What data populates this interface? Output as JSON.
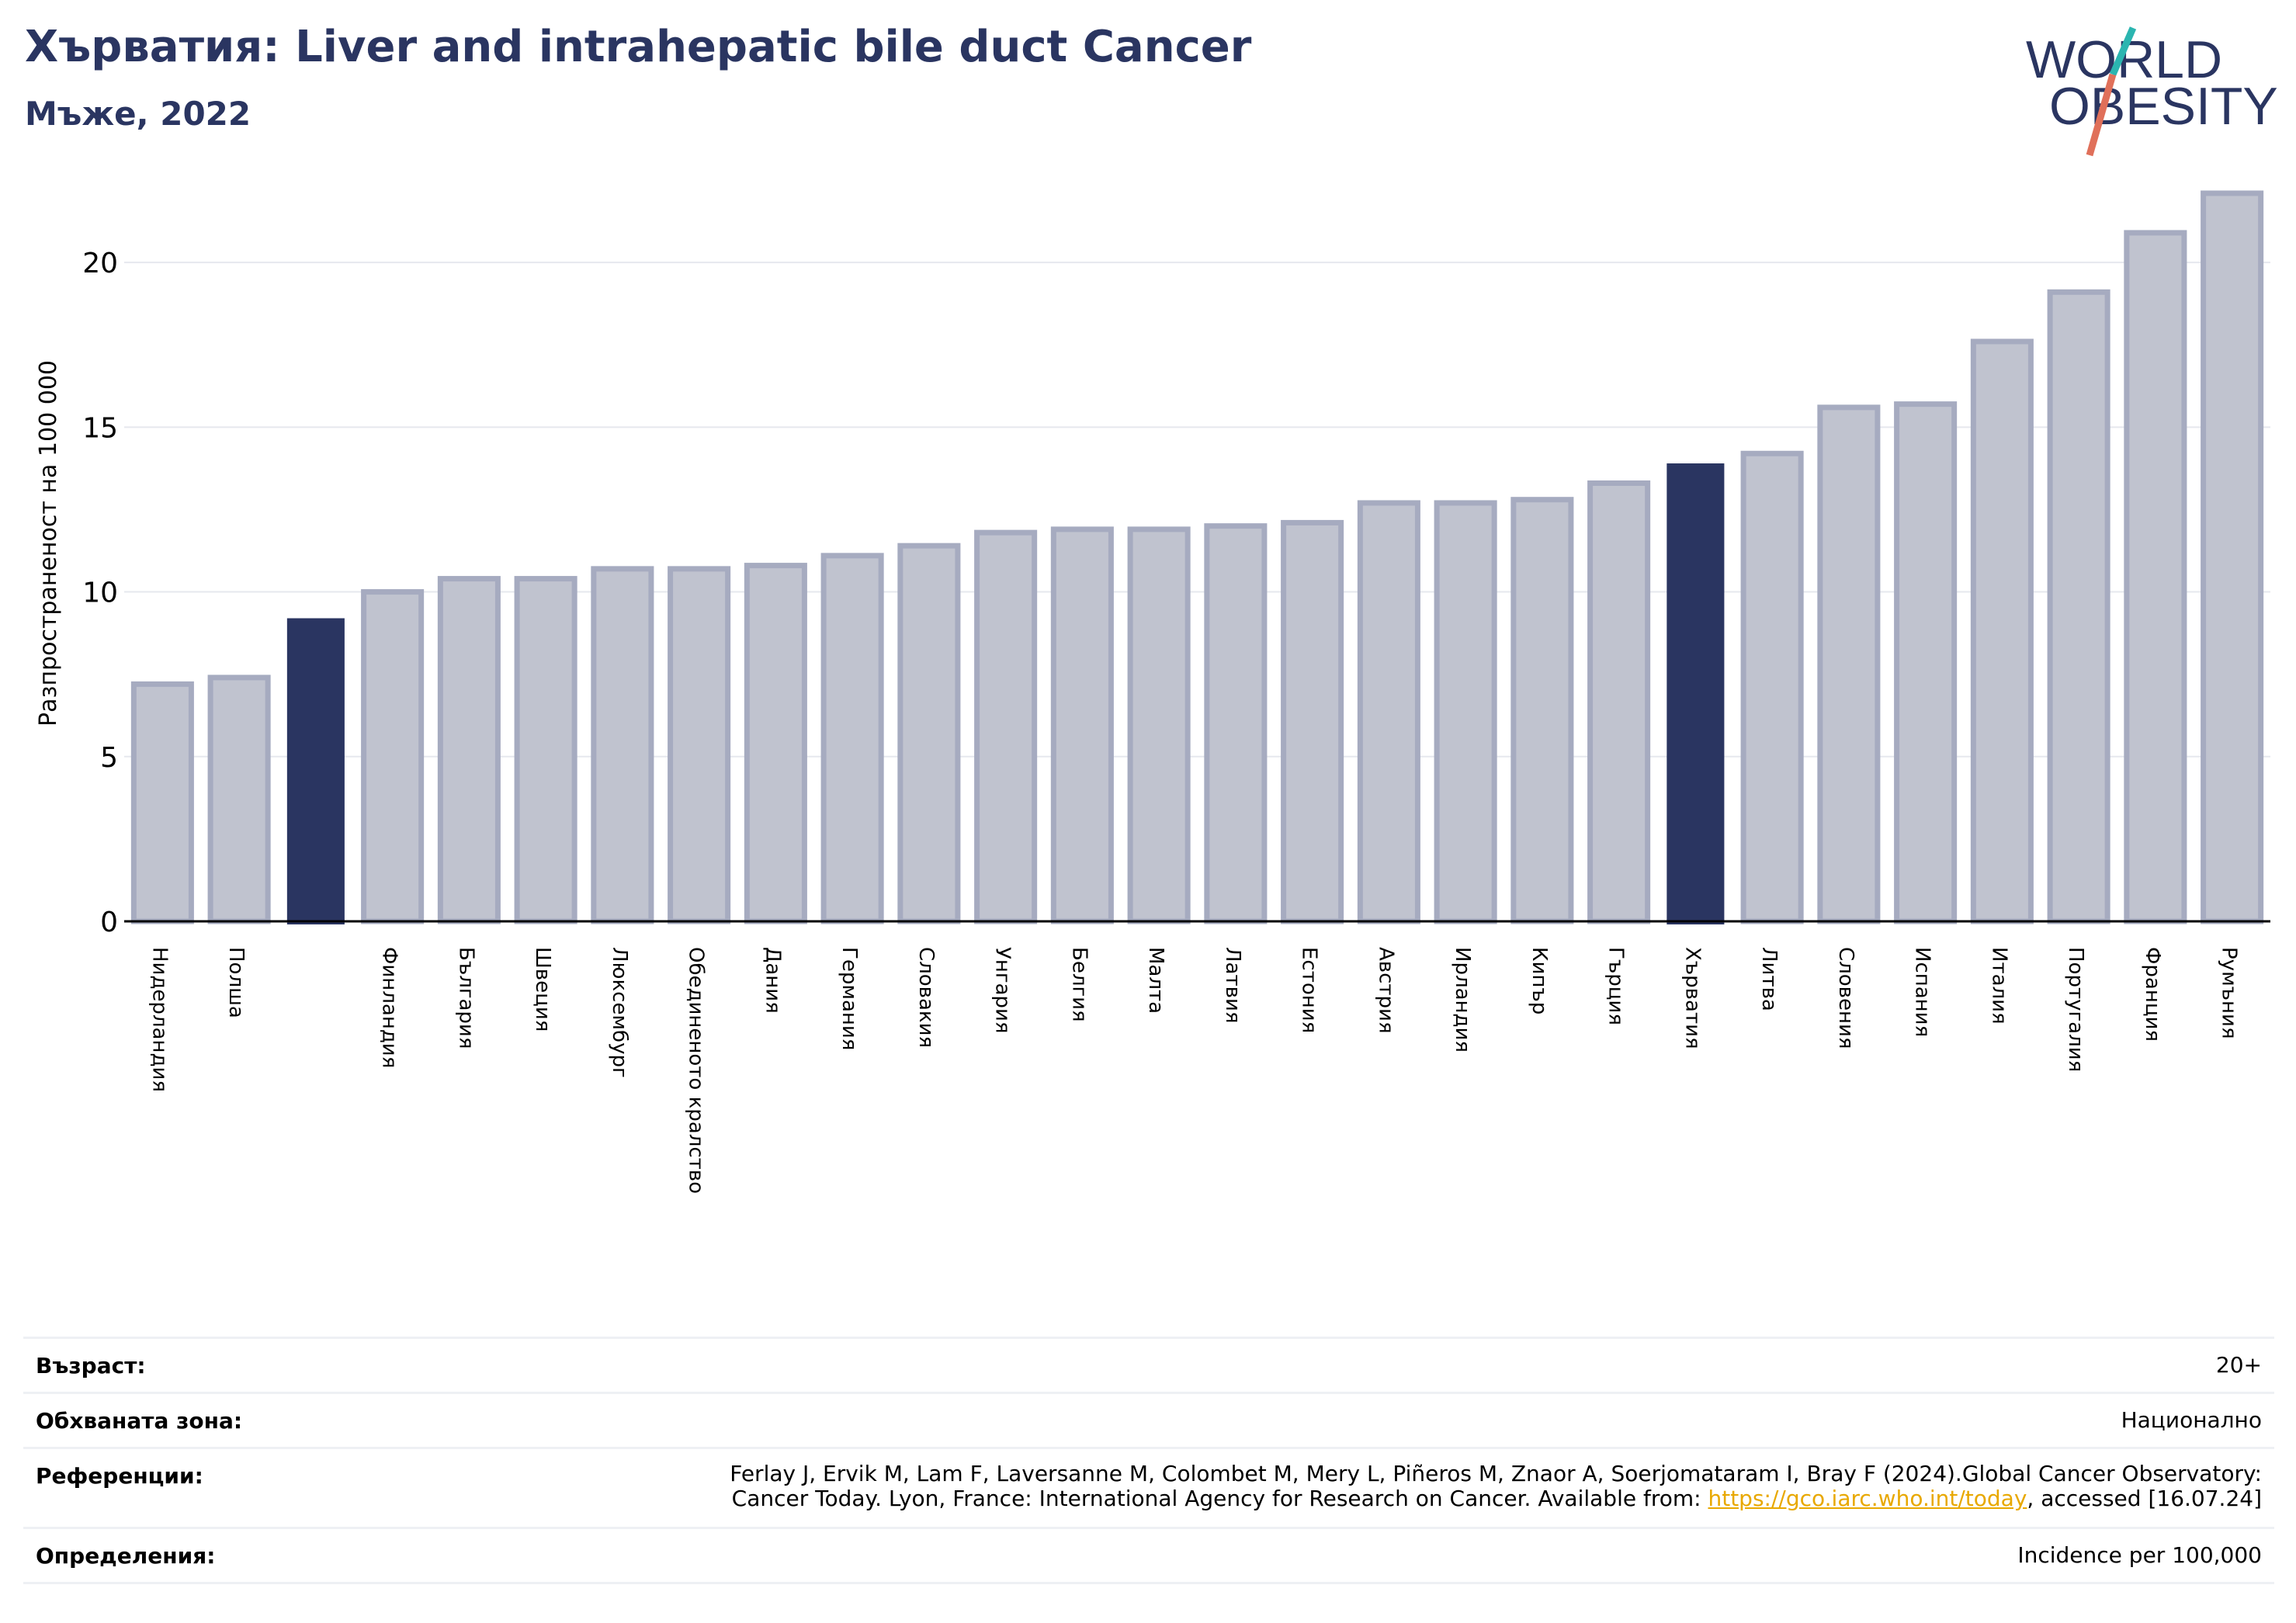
{
  "header": {
    "title": "Хърватия: Liver and intrahepatic bile duct Cancer",
    "subtitle": "Мъже, 2022"
  },
  "logo": {
    "line1": "WORLD",
    "line2": "OBESITY",
    "accent_teal": "#2bb5b0",
    "accent_coral": "#e0705a"
  },
  "chart_data": {
    "type": "bar",
    "ylabel": "Разпространеност  на 100 000",
    "ylim": [
      0,
      22.5
    ],
    "yticks": [
      0,
      5,
      10,
      15,
      20
    ],
    "grid": true,
    "categories": [
      "Нидерландия",
      "Полша",
      "",
      "Финландия",
      "България",
      "Швеция",
      "Люксембург",
      "Обединеното кралство",
      "Дания",
      "Германия",
      "Словакия",
      "Унгария",
      "Белгия",
      "Малта",
      "Латвия",
      "Естония",
      "Австрия",
      "Ирландия",
      "Кипър",
      "Гърция",
      "Хърватия",
      "Литва",
      "Словения",
      "Испания",
      "Италия",
      "Португалия",
      "Франция",
      "Румъния"
    ],
    "values": [
      7.2,
      7.4,
      9.2,
      10.0,
      10.4,
      10.4,
      10.7,
      10.7,
      10.8,
      11.1,
      11.4,
      11.8,
      11.9,
      11.9,
      12.0,
      12.1,
      12.7,
      12.7,
      12.8,
      13.3,
      13.9,
      14.2,
      15.6,
      15.7,
      17.6,
      19.1,
      20.9,
      22.1
    ],
    "highlight": [
      2,
      20
    ],
    "colors": {
      "bar": "#c0c3cf",
      "bar_edge": "#a6abc0",
      "highlight": "#2a3561",
      "grid": "#e6e8ee",
      "axis": "#000000"
    }
  },
  "footer": {
    "age_label": "Възраст:",
    "age_value": "20+",
    "area_label": "Обхваната зона:",
    "area_value": "Национално",
    "ref_label": "Референции:",
    "ref_line1": "Ferlay J, Ervik M, Lam F, Laversanne M, Colombet M, Mery L, Piñeros M, Znaor A, Soerjomataram I, Bray F (2024).Global Cancer Observatory:",
    "ref_line2_pre": "Cancer Today. Lyon, France: International Agency for Research on Cancer. Available from: ",
    "ref_link": "https://gco.iarc.who.int/today",
    "ref_line2_post": ", accessed [16.07.24]",
    "def_label": "Определения:",
    "def_value": "Incidence per 100,000"
  }
}
